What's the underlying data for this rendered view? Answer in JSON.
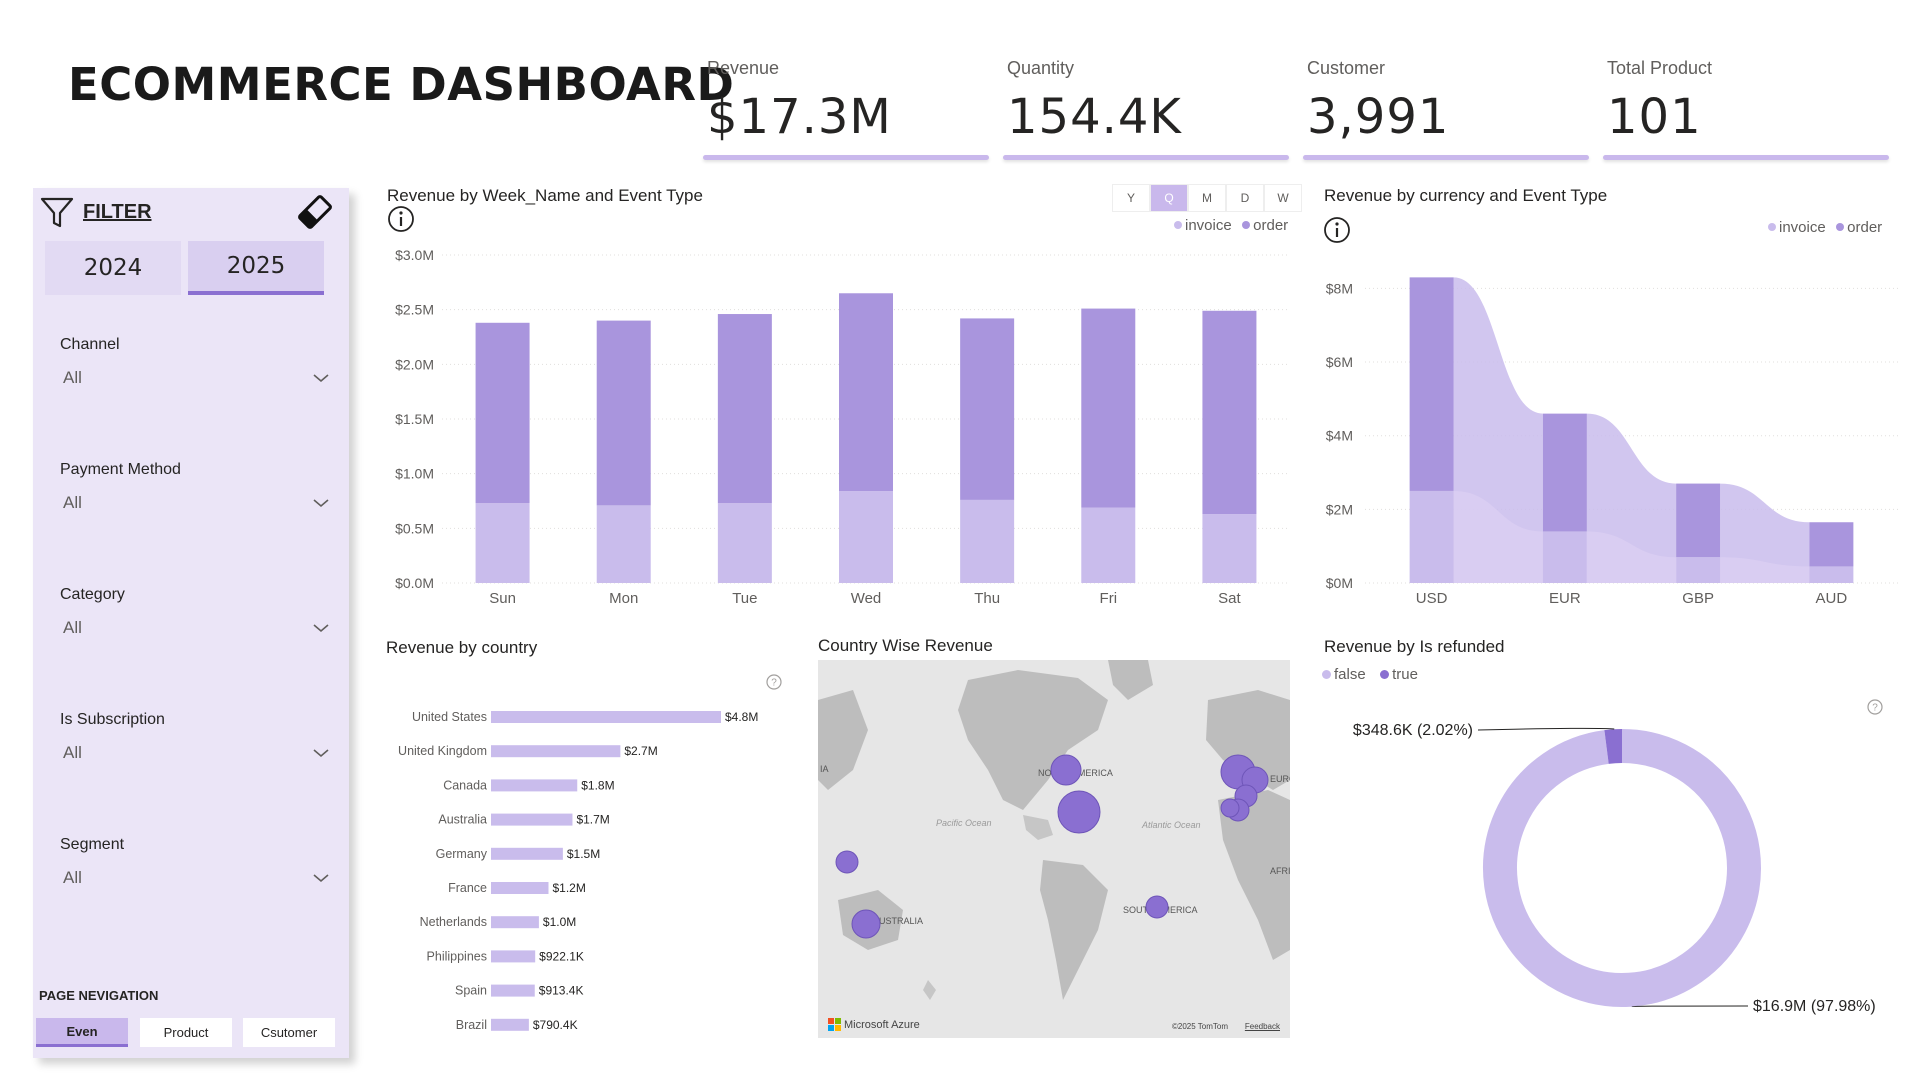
{
  "title": "ECOMMERCE DASHBOARD",
  "kpis": [
    {
      "label": "Revenue",
      "value": "$17.3M"
    },
    {
      "label": "Quantity",
      "value": "154.4K"
    },
    {
      "label": "Customer",
      "value": "3,991"
    },
    {
      "label": "Total Product",
      "value": "101"
    }
  ],
  "filter": {
    "label": "FILTER",
    "years": [
      "2024",
      "2025"
    ],
    "selected_year": "2025",
    "slicers": [
      {
        "label": "Channel",
        "value": "All"
      },
      {
        "label": "Payment Method",
        "value": "All"
      },
      {
        "label": "Category",
        "value": "All"
      },
      {
        "label": "Is Subscription",
        "value": "All"
      },
      {
        "label": "Segment",
        "value": "All"
      }
    ],
    "nav_title": "PAGE NEVIGATION",
    "nav": [
      "Even",
      "Product",
      "Csutomer"
    ]
  },
  "weekday_chart": {
    "title": "Revenue by Week_Name and Event Type",
    "periods": [
      "Y",
      "Q",
      "M",
      "D",
      "W"
    ],
    "selected_period": "Q",
    "legend": [
      "invoice",
      "order"
    ]
  },
  "currency_chart": {
    "title": "Revenue by currency and Event Type",
    "legend": [
      "invoice",
      "order"
    ]
  },
  "country_chart": {
    "title": "Revenue by country"
  },
  "map": {
    "title": "Country Wise Revenue",
    "labels": [
      "NORTH AMERICA",
      "SOUTH AMERICA",
      "AUSTRALIA",
      "AFRI",
      "EURO",
      "IA"
    ],
    "oceans": [
      "Pacific Ocean",
      "Atlantic Ocean"
    ],
    "brand": "Microsoft Azure",
    "copyright": "©2025 TomTom",
    "feedback": "Feedback"
  },
  "refund_chart": {
    "title": "Revenue by Is refunded",
    "legend": [
      "false",
      "true"
    ]
  },
  "colors": {
    "accent": "#8a6fd1",
    "order": "#a995dd",
    "invoice": "#c9bcec",
    "light": "#d9cdf2",
    "panel": "#ebe5f7"
  },
  "chart_data": [
    {
      "type": "bar",
      "stacked": true,
      "title": "Revenue by Week_Name and Event Type",
      "categories": [
        "Sun",
        "Mon",
        "Tue",
        "Wed",
        "Thu",
        "Fri",
        "Sat"
      ],
      "series": [
        {
          "name": "invoice",
          "values": [
            0.73,
            0.71,
            0.73,
            0.84,
            0.76,
            0.69,
            0.63
          ]
        },
        {
          "name": "order",
          "values": [
            1.65,
            1.69,
            1.73,
            1.81,
            1.66,
            1.82,
            1.86
          ]
        }
      ],
      "unit": "$M",
      "ylim": [
        0,
        3.0
      ],
      "yticks": [
        "$0.0M",
        "$0.5M",
        "$1.0M",
        "$1.5M",
        "$2.0M",
        "$2.5M",
        "$3.0M"
      ],
      "legend_position": "top-right"
    },
    {
      "type": "area",
      "subtype": "ribbon",
      "title": "Revenue by currency and Event Type",
      "categories": [
        "USD",
        "EUR",
        "GBP",
        "AUD"
      ],
      "series": [
        {
          "name": "invoice",
          "values": [
            2.5,
            1.4,
            0.7,
            0.45
          ]
        },
        {
          "name": "order",
          "values": [
            5.8,
            3.2,
            2.0,
            1.2
          ]
        }
      ],
      "unit": "$M",
      "ylim": [
        0,
        8.5
      ],
      "yticks": [
        "$0M",
        "$2M",
        "$4M",
        "$6M",
        "$8M"
      ],
      "legend_position": "top-right"
    },
    {
      "type": "bar",
      "orientation": "horizontal",
      "title": "Revenue by country",
      "categories": [
        "United States",
        "United Kingdom",
        "Canada",
        "Australia",
        "Germany",
        "France",
        "Netherlands",
        "Philippines",
        "Spain",
        "Brazil"
      ],
      "values": [
        4.8,
        2.7,
        1.8,
        1.7,
        1.5,
        1.2,
        1.0,
        0.9221,
        0.9134,
        0.7904
      ],
      "labels": [
        "$4.8M",
        "$2.7M",
        "$1.8M",
        "$1.7M",
        "$1.5M",
        "$1.2M",
        "$1.0M",
        "$922.1K",
        "$913.4K",
        "$790.4K"
      ],
      "unit": "$M"
    },
    {
      "type": "pie",
      "subtype": "donut",
      "title": "Revenue by Is refunded",
      "categories": [
        "false",
        "true"
      ],
      "values": [
        16.9,
        0.3486
      ],
      "labels": [
        "$16.9M (97.98%)",
        "$348.6K (2.02%)"
      ],
      "legend_position": "top-left"
    }
  ]
}
